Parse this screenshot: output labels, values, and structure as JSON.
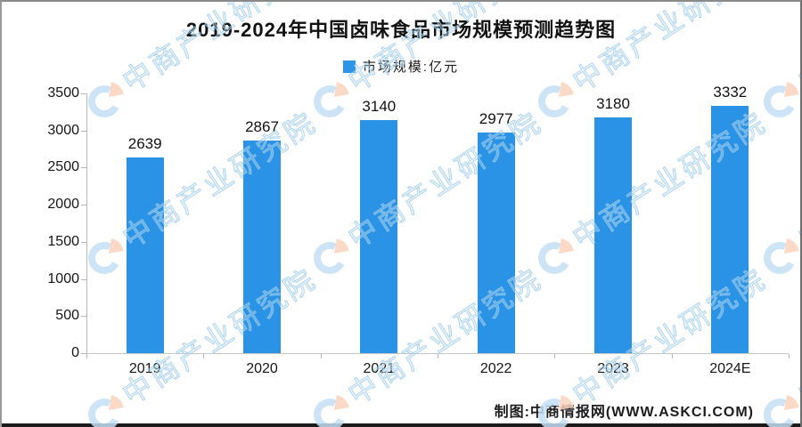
{
  "title": "2019-2024年中国卤味食品市场规模预测趋势图",
  "legend": {
    "label": "市场规模:亿元",
    "swatch_color": "#2e96e8"
  },
  "chart_data": {
    "type": "bar",
    "title": "2019-2024年中国卤味食品市场规模预测趋势图",
    "categories": [
      "2019",
      "2020",
      "2021",
      "2022",
      "2023",
      "2024E"
    ],
    "values": [
      2639,
      2867,
      3140,
      2977,
      3180,
      3332
    ],
    "series_name": "市场规模",
    "unit": "亿元",
    "xlabel": "",
    "ylabel": "",
    "ylim": [
      0,
      3500
    ],
    "yticks": [
      0,
      500,
      1000,
      1500,
      2000,
      2500,
      3000,
      3500
    ],
    "grid": false,
    "legend_position": "top-center",
    "bar_color": "#2b93e6",
    "value_labels_shown": true
  },
  "footer": {
    "credit": "制图:中商情报网(WWW.ASKCI.COM)"
  },
  "watermark": {
    "text": "中商产业研究院",
    "text_color": "#9ccbe9",
    "logo_blue": "#c5dff5",
    "logo_orange": "#fad4bc"
  }
}
